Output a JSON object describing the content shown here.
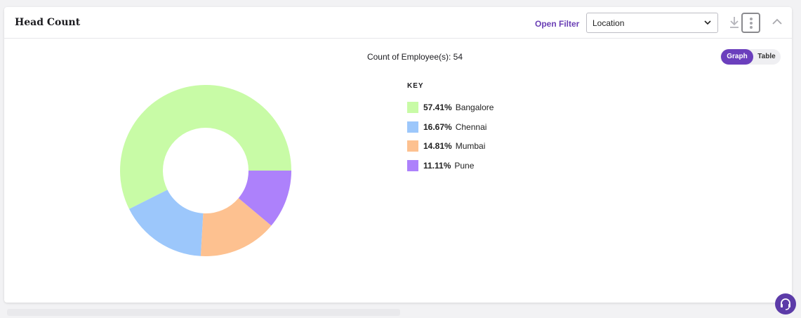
{
  "header": {
    "title": "Head Count",
    "open_filter_label": "Open Filter",
    "select": {
      "value": "Location",
      "icon": "chevron-down-icon"
    },
    "actions": {
      "download_icon": "download-icon",
      "more_icon": "kebab-menu-icon",
      "collapse_icon": "chevron-up-icon"
    }
  },
  "summary": {
    "count_text": "Count of Employee(s): 54"
  },
  "view_toggle": {
    "graph_label": "Graph",
    "table_label": "Table",
    "active": "Graph"
  },
  "legend": {
    "title": "KEY"
  },
  "chart_data": {
    "type": "pie",
    "donut": true,
    "total": 54,
    "slices": [
      {
        "label": "Bangalore",
        "percent_label": "57.41%",
        "value": 57.41,
        "color": "#c8fba6"
      },
      {
        "label": "Chennai",
        "percent_label": "16.67%",
        "value": 16.67,
        "color": "#9cc7fb"
      },
      {
        "label": "Mumbai",
        "percent_label": "14.81%",
        "value": 14.81,
        "color": "#fdc190"
      },
      {
        "label": "Pune",
        "percent_label": "11.11%",
        "value": 11.11,
        "color": "#ad81fb"
      }
    ]
  },
  "colors": {
    "accent": "#6b3fbd",
    "support_button": "#5c3ba8"
  },
  "support": {
    "icon": "headset-icon"
  }
}
